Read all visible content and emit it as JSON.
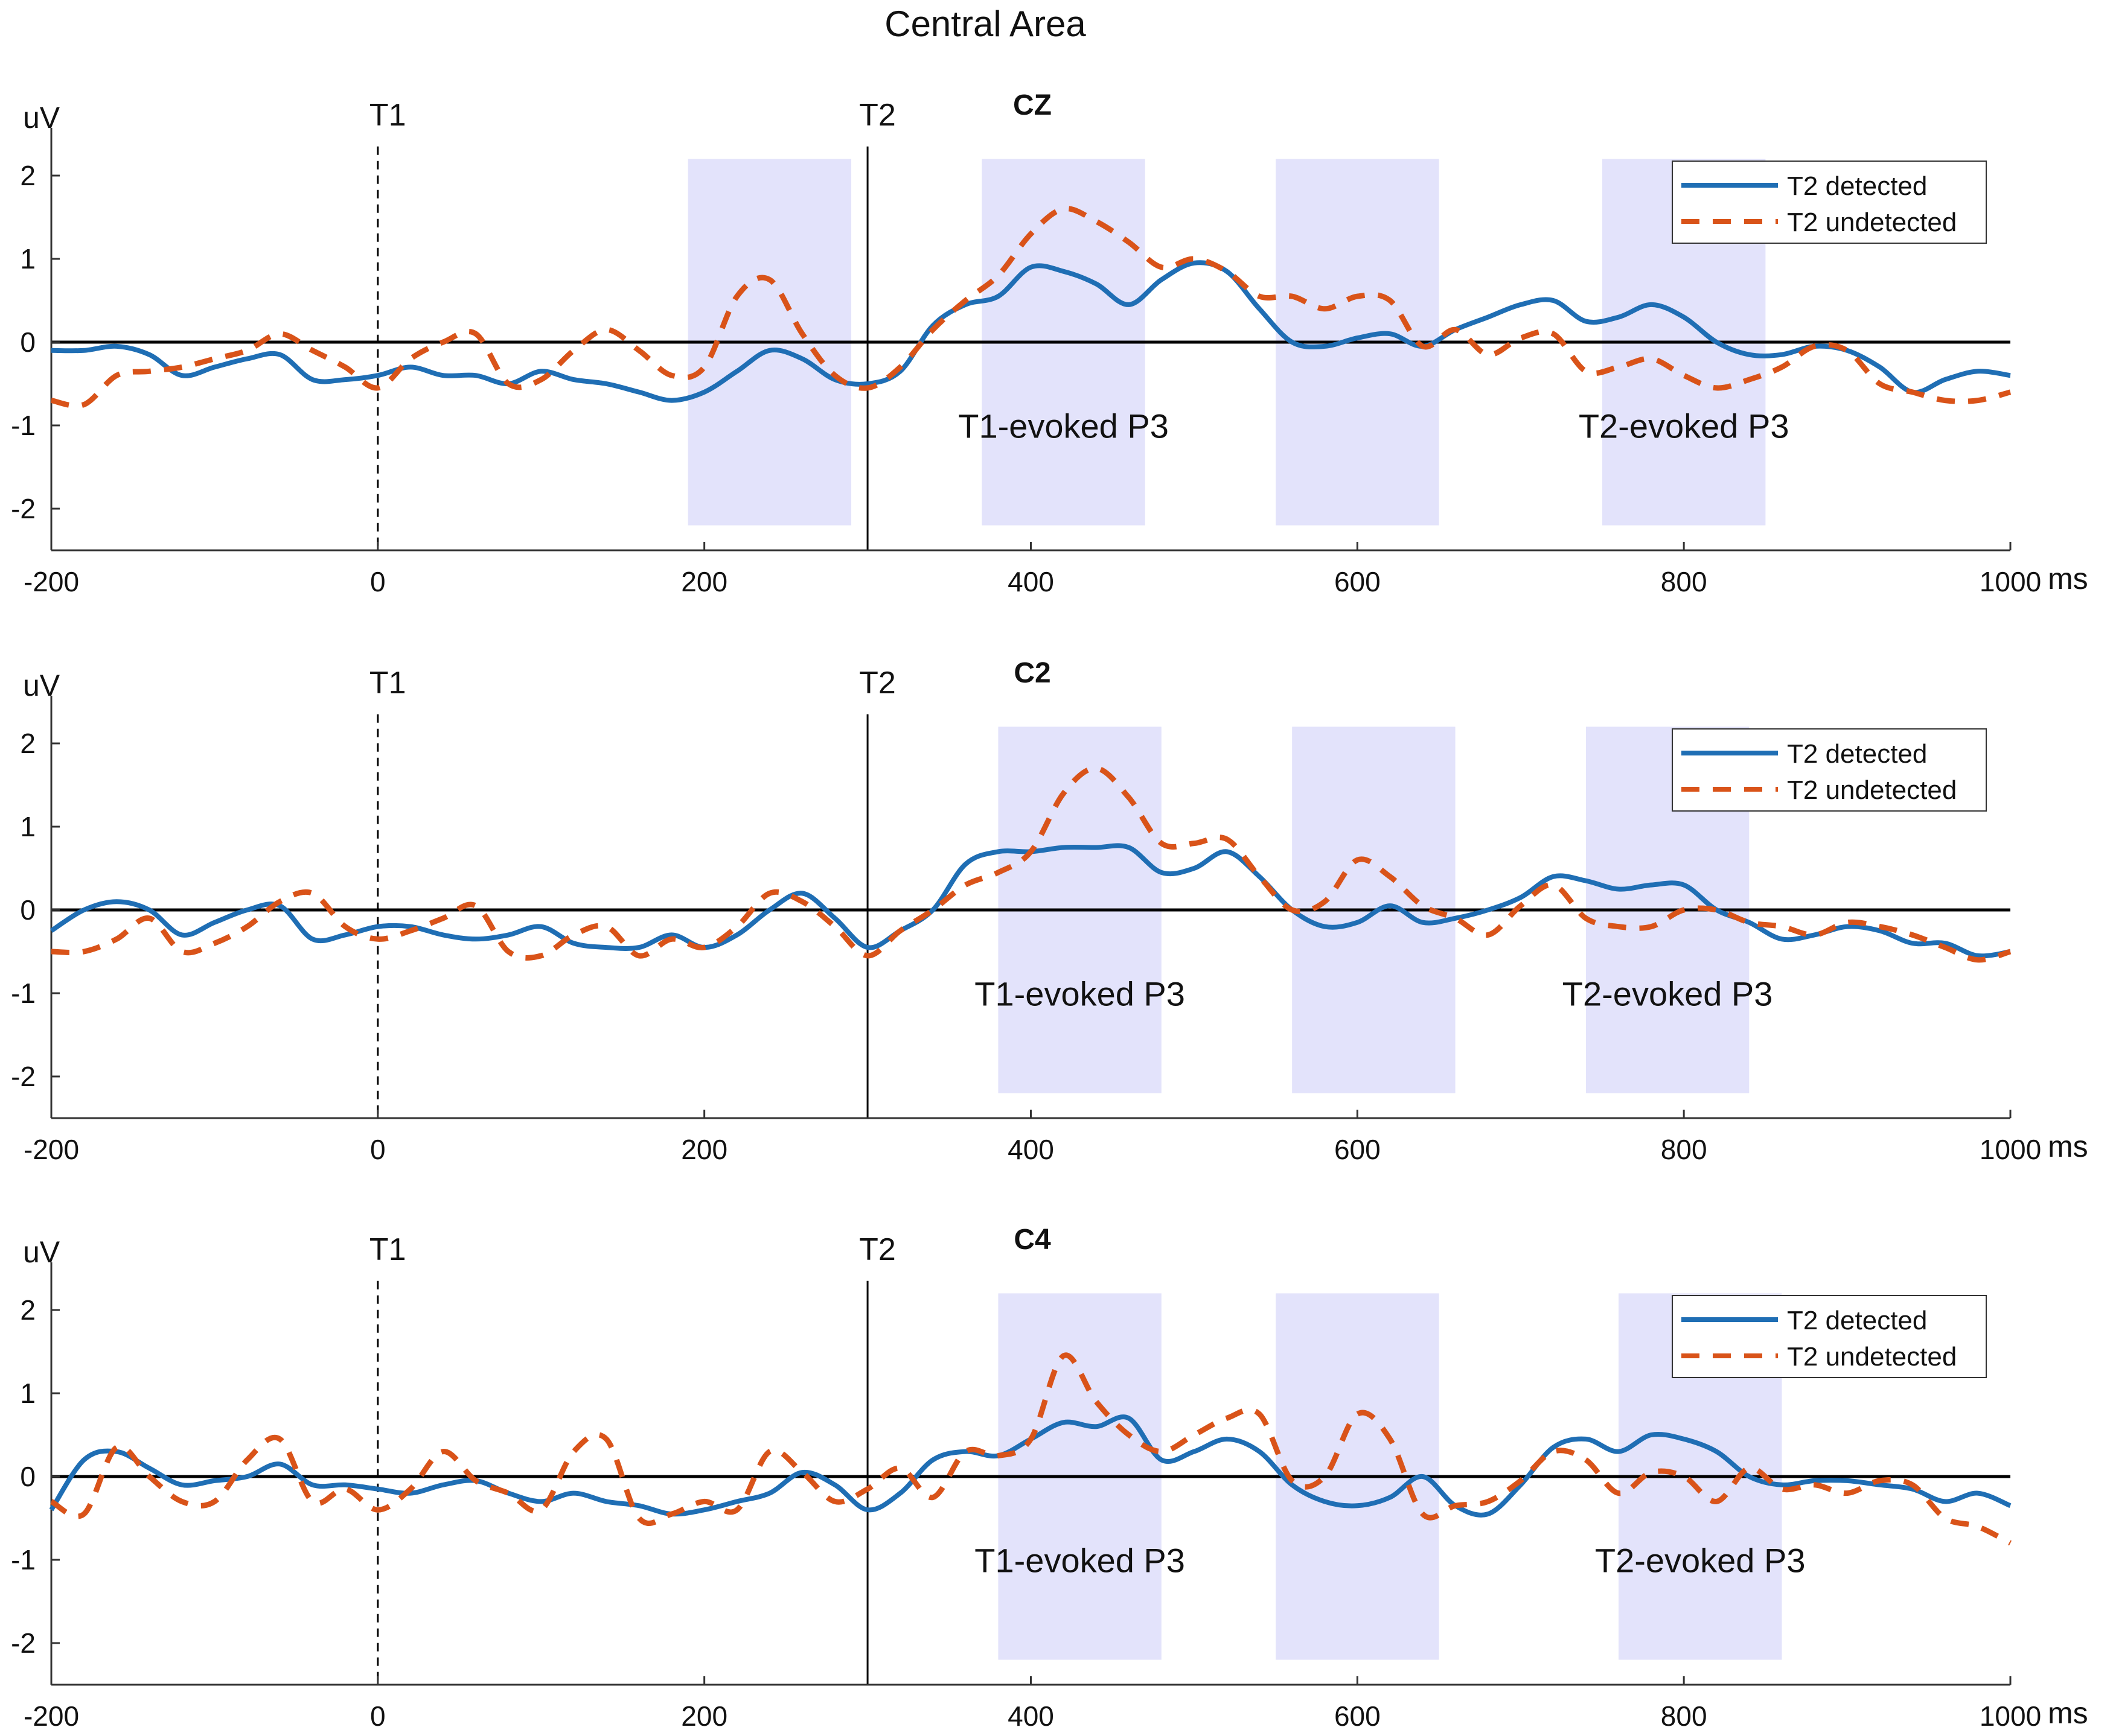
{
  "figure_title": "Central Area",
  "chart_data": [
    {
      "type": "line",
      "title": "CZ",
      "xlabel": "ms",
      "ylabel": "uV",
      "xlim": [
        -200,
        1000
      ],
      "ylim": [
        -2.5,
        2.5
      ],
      "xticks": [
        -200,
        0,
        200,
        400,
        600,
        800,
        1000
      ],
      "yticks": [
        -2,
        -1,
        0,
        1,
        2
      ],
      "markers": [
        {
          "label": "T1",
          "x": 0,
          "style": "dashed"
        },
        {
          "label": "T2",
          "x": 300,
          "style": "solid"
        }
      ],
      "windows": [
        {
          "x0": 190,
          "x1": 290,
          "label": ""
        },
        {
          "x0": 370,
          "x1": 470,
          "label": "T1-evoked P3"
        },
        {
          "x0": 550,
          "x1": 650,
          "label": ""
        },
        {
          "x0": 750,
          "x1": 850,
          "label": "T2-evoked P3"
        }
      ],
      "legend": [
        "T2 detected",
        "T2 undetected"
      ],
      "legend_position": "top-right",
      "series": [
        {
          "name": "T2 detected",
          "style": "solid",
          "color": "#1f6eb4",
          "x": [
            -200,
            -180,
            -160,
            -140,
            -120,
            -100,
            -80,
            -60,
            -40,
            -20,
            0,
            20,
            40,
            60,
            80,
            100,
            120,
            140,
            160,
            180,
            200,
            220,
            240,
            260,
            280,
            300,
            320,
            340,
            360,
            380,
            400,
            420,
            440,
            460,
            480,
            500,
            520,
            540,
            560,
            580,
            600,
            620,
            640,
            660,
            680,
            700,
            720,
            740,
            760,
            780,
            800,
            820,
            840,
            860,
            880,
            900,
            920,
            940,
            960,
            980,
            1000
          ],
          "values": [
            -0.1,
            -0.1,
            -0.05,
            -0.15,
            -0.4,
            -0.3,
            -0.2,
            -0.15,
            -0.45,
            -0.45,
            -0.4,
            -0.3,
            -0.4,
            -0.4,
            -0.5,
            -0.35,
            -0.45,
            -0.5,
            -0.6,
            -0.7,
            -0.6,
            -0.35,
            -0.1,
            -0.2,
            -0.45,
            -0.5,
            -0.35,
            0.2,
            0.45,
            0.55,
            0.9,
            0.85,
            0.7,
            0.45,
            0.75,
            0.95,
            0.85,
            0.4,
            0.0,
            -0.05,
            0.05,
            0.1,
            -0.05,
            0.15,
            0.3,
            0.45,
            0.5,
            0.25,
            0.3,
            0.45,
            0.3,
            0.0,
            -0.15,
            -0.15,
            -0.05,
            -0.1,
            -0.3,
            -0.6,
            -0.45,
            -0.35,
            -0.4
          ]
        },
        {
          "name": "T2 undetected",
          "style": "dashed",
          "color": "#d95319",
          "x": [
            -200,
            -180,
            -160,
            -140,
            -120,
            -100,
            -80,
            -60,
            -40,
            -20,
            0,
            20,
            40,
            60,
            80,
            100,
            120,
            140,
            160,
            180,
            200,
            220,
            240,
            260,
            280,
            300,
            320,
            340,
            360,
            380,
            400,
            420,
            440,
            460,
            480,
            500,
            520,
            540,
            560,
            580,
            600,
            620,
            640,
            660,
            680,
            700,
            720,
            740,
            760,
            780,
            800,
            820,
            840,
            860,
            880,
            900,
            920,
            940,
            960,
            980,
            1000
          ],
          "values": [
            -0.7,
            -0.75,
            -0.4,
            -0.35,
            -0.3,
            -0.2,
            -0.1,
            0.1,
            -0.1,
            -0.3,
            -0.55,
            -0.2,
            0.0,
            0.1,
            -0.5,
            -0.45,
            -0.1,
            0.15,
            -0.1,
            -0.4,
            -0.3,
            0.55,
            0.75,
            0.1,
            -0.4,
            -0.55,
            -0.3,
            0.15,
            0.5,
            0.8,
            1.3,
            1.6,
            1.45,
            1.2,
            0.9,
            1.0,
            0.85,
            0.55,
            0.55,
            0.4,
            0.55,
            0.5,
            -0.05,
            0.15,
            -0.15,
            0.05,
            0.1,
            -0.35,
            -0.3,
            -0.2,
            -0.4,
            -0.55,
            -0.45,
            -0.3,
            -0.05,
            -0.1,
            -0.5,
            -0.6,
            -0.7,
            -0.7,
            -0.6
          ]
        }
      ]
    },
    {
      "type": "line",
      "title": "C2",
      "xlabel": "ms",
      "ylabel": "uV",
      "xlim": [
        -200,
        1000
      ],
      "ylim": [
        -2.5,
        2.5
      ],
      "xticks": [
        -200,
        0,
        200,
        400,
        600,
        800,
        1000
      ],
      "yticks": [
        -2,
        -1,
        0,
        1,
        2
      ],
      "markers": [
        {
          "label": "T1",
          "x": 0,
          "style": "dashed"
        },
        {
          "label": "T2",
          "x": 300,
          "style": "solid"
        }
      ],
      "windows": [
        {
          "x0": 380,
          "x1": 480,
          "label": "T1-evoked P3"
        },
        {
          "x0": 560,
          "x1": 660,
          "label": ""
        },
        {
          "x0": 740,
          "x1": 840,
          "label": "T2-evoked P3"
        }
      ],
      "legend": [
        "T2 detected",
        "T2 undetected"
      ],
      "legend_position": "top-right",
      "series": [
        {
          "name": "T2 detected",
          "style": "solid",
          "color": "#1f6eb4",
          "x": [
            -200,
            -180,
            -160,
            -140,
            -120,
            -100,
            -80,
            -60,
            -40,
            -20,
            0,
            20,
            40,
            60,
            80,
            100,
            120,
            140,
            160,
            180,
            200,
            220,
            240,
            260,
            280,
            300,
            320,
            340,
            360,
            380,
            400,
            420,
            440,
            460,
            480,
            500,
            520,
            540,
            560,
            580,
            600,
            620,
            640,
            660,
            680,
            700,
            720,
            740,
            760,
            780,
            800,
            820,
            840,
            860,
            880,
            900,
            920,
            940,
            960,
            980,
            1000
          ],
          "values": [
            -0.25,
            0.0,
            0.1,
            0.0,
            -0.3,
            -0.15,
            0.0,
            0.05,
            -0.35,
            -0.3,
            -0.2,
            -0.2,
            -0.3,
            -0.35,
            -0.3,
            -0.2,
            -0.4,
            -0.45,
            -0.45,
            -0.3,
            -0.45,
            -0.3,
            0.0,
            0.2,
            -0.1,
            -0.45,
            -0.25,
            0.0,
            0.55,
            0.7,
            0.7,
            0.75,
            0.75,
            0.75,
            0.45,
            0.5,
            0.7,
            0.4,
            0.0,
            -0.2,
            -0.15,
            0.05,
            -0.15,
            -0.1,
            0.0,
            0.15,
            0.4,
            0.35,
            0.25,
            0.3,
            0.3,
            0.0,
            -0.15,
            -0.35,
            -0.3,
            -0.2,
            -0.25,
            -0.4,
            -0.4,
            -0.55,
            -0.5
          ]
        },
        {
          "name": "T2 undetected",
          "style": "dashed",
          "color": "#d95319",
          "x": [
            -200,
            -180,
            -160,
            -140,
            -120,
            -100,
            -80,
            -60,
            -40,
            -20,
            0,
            20,
            40,
            60,
            80,
            100,
            120,
            140,
            160,
            180,
            200,
            220,
            240,
            260,
            280,
            300,
            320,
            340,
            360,
            380,
            400,
            420,
            440,
            460,
            480,
            500,
            520,
            540,
            560,
            580,
            600,
            620,
            640,
            660,
            680,
            700,
            720,
            740,
            760,
            780,
            800,
            820,
            840,
            860,
            880,
            900,
            920,
            940,
            960,
            980,
            1000
          ],
          "values": [
            -0.5,
            -0.5,
            -0.35,
            -0.1,
            -0.5,
            -0.4,
            -0.2,
            0.1,
            0.2,
            -0.2,
            -0.35,
            -0.25,
            -0.1,
            0.05,
            -0.5,
            -0.55,
            -0.3,
            -0.2,
            -0.55,
            -0.35,
            -0.45,
            -0.2,
            0.2,
            0.1,
            -0.2,
            -0.55,
            -0.25,
            0.0,
            0.3,
            0.45,
            0.7,
            1.4,
            1.7,
            1.35,
            0.8,
            0.8,
            0.85,
            0.4,
            0.0,
            0.1,
            0.6,
            0.4,
            0.05,
            -0.1,
            -0.3,
            0.05,
            0.3,
            -0.1,
            -0.2,
            -0.2,
            0.0,
            0.0,
            -0.15,
            -0.2,
            -0.3,
            -0.15,
            -0.2,
            -0.3,
            -0.45,
            -0.6,
            -0.5
          ]
        }
      ]
    },
    {
      "type": "line",
      "title": "C4",
      "xlabel": "ms",
      "ylabel": "uV",
      "xlim": [
        -200,
        1000
      ],
      "ylim": [
        -2.5,
        2.5
      ],
      "xticks": [
        -200,
        0,
        200,
        400,
        600,
        800,
        1000
      ],
      "yticks": [
        -2,
        -1,
        0,
        1,
        2
      ],
      "markers": [
        {
          "label": "T1",
          "x": 0,
          "style": "dashed"
        },
        {
          "label": "T2",
          "x": 300,
          "style": "solid"
        }
      ],
      "windows": [
        {
          "x0": 380,
          "x1": 480,
          "label": "T1-evoked P3"
        },
        {
          "x0": 550,
          "x1": 650,
          "label": ""
        },
        {
          "x0": 760,
          "x1": 860,
          "label": "T2-evoked P3"
        }
      ],
      "legend": [
        "T2 detected",
        "T2 undetected"
      ],
      "legend_position": "top-right",
      "series": [
        {
          "name": "T2 detected",
          "style": "solid",
          "color": "#1f6eb4",
          "x": [
            -200,
            -180,
            -160,
            -140,
            -120,
            -100,
            -80,
            -60,
            -40,
            -20,
            0,
            20,
            40,
            60,
            80,
            100,
            120,
            140,
            160,
            180,
            200,
            220,
            240,
            260,
            280,
            300,
            320,
            340,
            360,
            380,
            400,
            420,
            440,
            460,
            480,
            500,
            520,
            540,
            560,
            580,
            600,
            620,
            640,
            660,
            680,
            700,
            720,
            740,
            760,
            780,
            800,
            820,
            840,
            860,
            880,
            900,
            920,
            940,
            960,
            980,
            1000
          ],
          "values": [
            -0.4,
            0.2,
            0.3,
            0.1,
            -0.1,
            -0.05,
            0.0,
            0.15,
            -0.1,
            -0.1,
            -0.15,
            -0.2,
            -0.1,
            -0.05,
            -0.2,
            -0.3,
            -0.2,
            -0.3,
            -0.35,
            -0.45,
            -0.4,
            -0.3,
            -0.2,
            0.05,
            -0.1,
            -0.4,
            -0.2,
            0.2,
            0.3,
            0.25,
            0.45,
            0.65,
            0.6,
            0.7,
            0.2,
            0.3,
            0.45,
            0.3,
            -0.1,
            -0.3,
            -0.35,
            -0.25,
            0.0,
            -0.35,
            -0.45,
            -0.1,
            0.35,
            0.45,
            0.3,
            0.5,
            0.45,
            0.3,
            0.0,
            -0.1,
            -0.05,
            -0.05,
            -0.1,
            -0.15,
            -0.3,
            -0.2,
            -0.35
          ]
        },
        {
          "name": "T2 undetected",
          "style": "dashed",
          "color": "#d95319",
          "x": [
            -200,
            -180,
            -160,
            -140,
            -120,
            -100,
            -80,
            -60,
            -40,
            -20,
            0,
            20,
            40,
            60,
            80,
            100,
            120,
            140,
            160,
            180,
            200,
            220,
            240,
            260,
            280,
            300,
            320,
            340,
            360,
            380,
            400,
            420,
            440,
            460,
            480,
            500,
            520,
            540,
            560,
            580,
            600,
            620,
            640,
            660,
            680,
            700,
            720,
            740,
            760,
            780,
            800,
            820,
            840,
            860,
            880,
            900,
            920,
            940,
            960,
            980,
            1000
          ],
          "values": [
            -0.3,
            -0.45,
            0.35,
            0.0,
            -0.3,
            -0.3,
            0.2,
            0.45,
            -0.3,
            -0.15,
            -0.4,
            -0.15,
            0.3,
            -0.05,
            -0.2,
            -0.4,
            0.3,
            0.45,
            -0.5,
            -0.45,
            -0.3,
            -0.4,
            0.3,
            0.05,
            -0.3,
            -0.15,
            0.1,
            -0.25,
            0.3,
            0.25,
            0.45,
            1.45,
            0.9,
            0.5,
            0.3,
            0.5,
            0.7,
            0.75,
            -0.05,
            0.0,
            0.75,
            0.45,
            -0.45,
            -0.35,
            -0.3,
            -0.05,
            0.3,
            0.2,
            -0.2,
            0.05,
            0.0,
            -0.3,
            0.1,
            -0.15,
            -0.1,
            -0.2,
            -0.05,
            -0.1,
            -0.5,
            -0.6,
            -0.8
          ]
        }
      ]
    }
  ]
}
